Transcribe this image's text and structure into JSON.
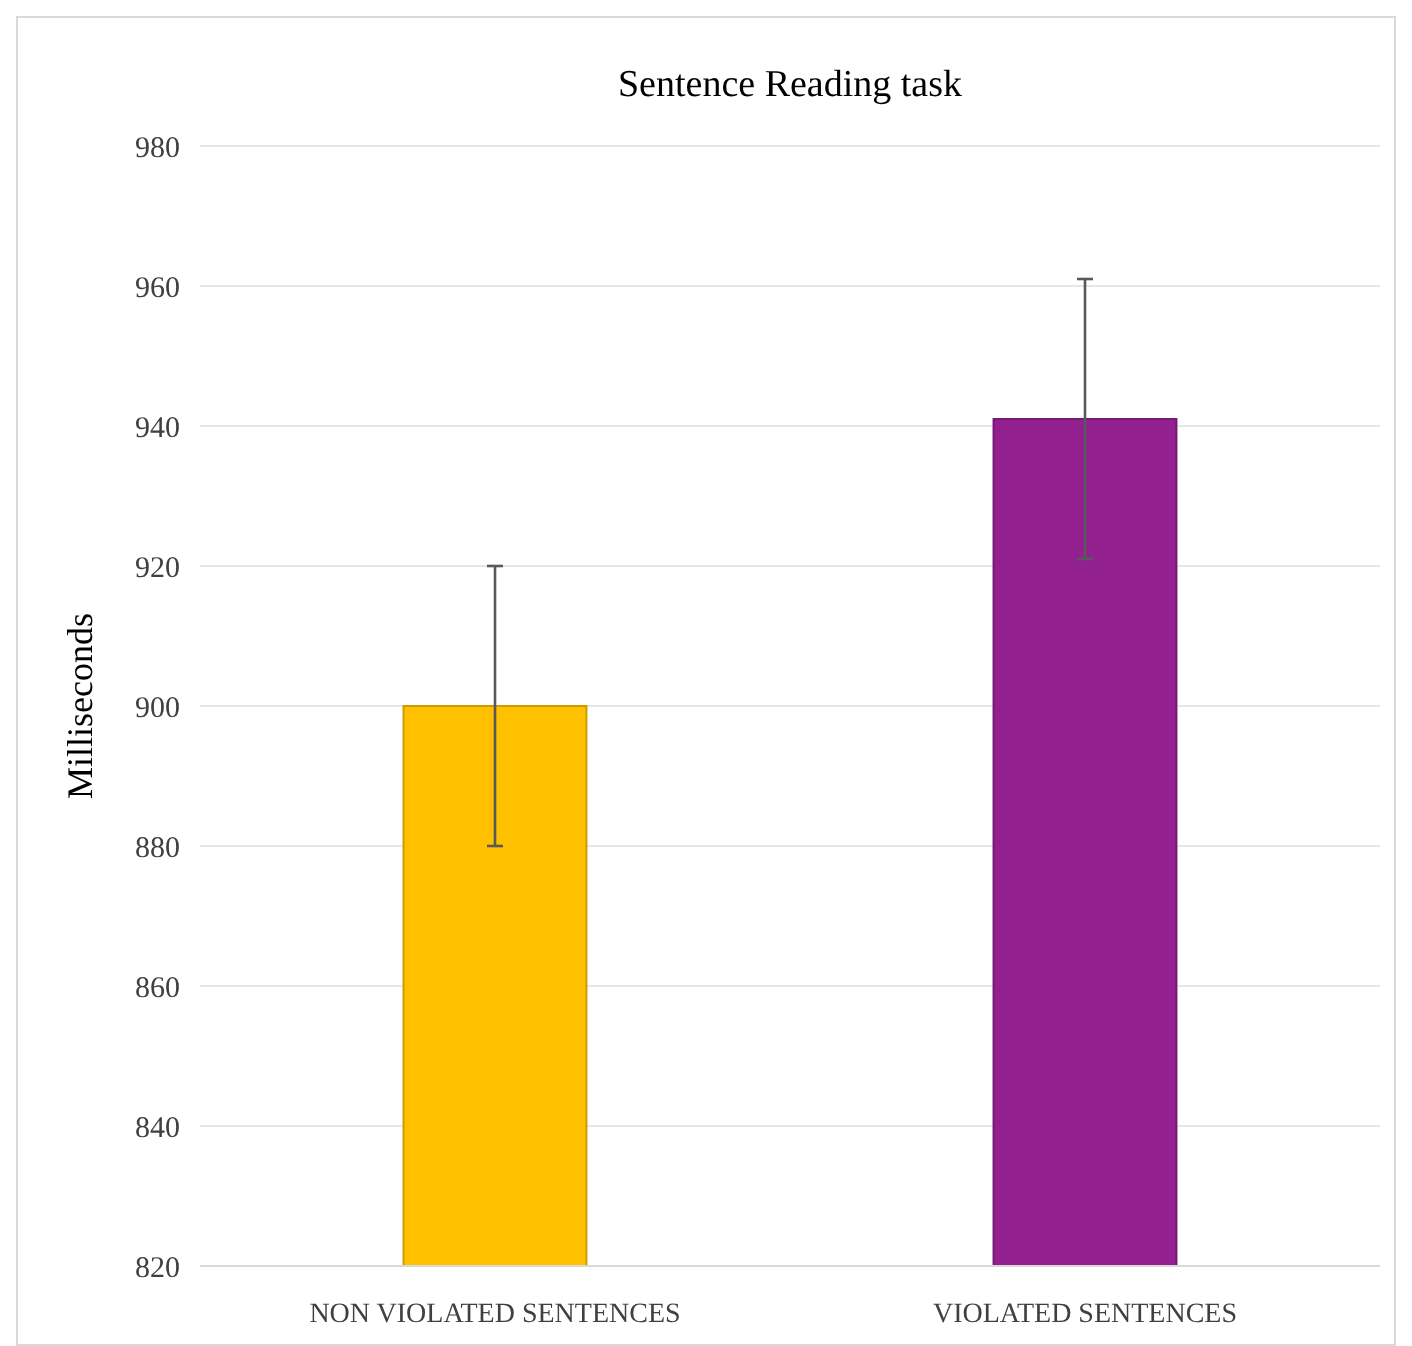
{
  "chart_data": {
    "type": "bar",
    "title": "Sentence Reading task",
    "ylabel": "Milliseconds",
    "categories": [
      "NON VIOLATED SENTENCES",
      "VIOLATED SENTENCES"
    ],
    "values": [
      900,
      941
    ],
    "errors": [
      20,
      20
    ],
    "colors": [
      "#ffc000",
      "#92208f"
    ],
    "ylim": [
      820,
      980
    ],
    "yticks": [
      820,
      840,
      860,
      880,
      900,
      920,
      940,
      960,
      980
    ],
    "grid": "y"
  }
}
